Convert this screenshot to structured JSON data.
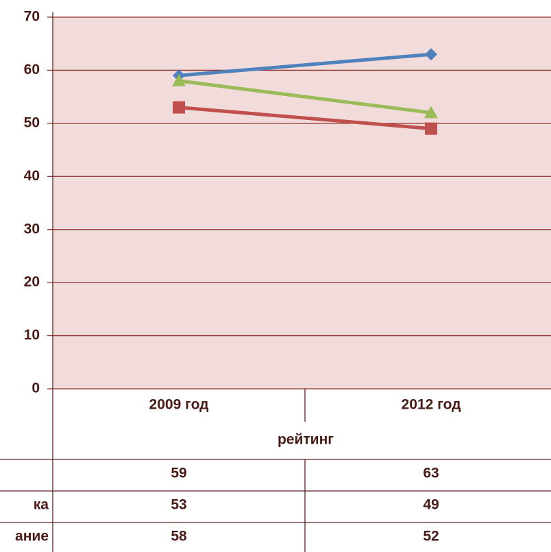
{
  "chart_data": {
    "type": "line",
    "categories": [
      "2009 год",
      "2012 год"
    ],
    "x_label": "рейтинг",
    "series": [
      {
        "name": null,
        "color": "#4f81bd",
        "marker": "diamond",
        "values": [
          59,
          63
        ]
      },
      {
        "name": "ка",
        "color": "#c0504d",
        "marker": "square",
        "values": [
          53,
          49
        ]
      },
      {
        "name": "ание",
        "color": "#9bbb59",
        "marker": "triangle",
        "values": [
          58,
          52
        ]
      }
    ],
    "ylim": [
      0,
      70
    ],
    "yticks": [
      0,
      10,
      20,
      30,
      40,
      50,
      60,
      70
    ],
    "grid": true,
    "plot_background": "#f2dcdb",
    "data_table": true
  }
}
